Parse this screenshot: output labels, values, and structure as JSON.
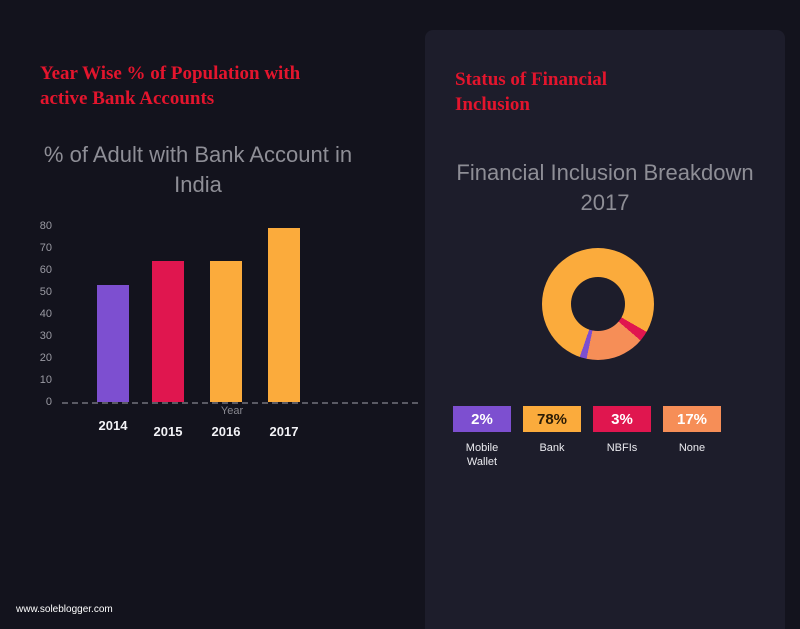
{
  "page": {
    "footer": "www.soleblogger.com",
    "background_color": "#13131d",
    "panel_color": "#1d1d2b",
    "accent_red": "#e3152d"
  },
  "left": {
    "heading": "Year Wise % of Population with active Bank Accounts",
    "chart_title": "% of Adult with Bank Account in India"
  },
  "right": {
    "heading": "Status of Financial Inclusion",
    "chart_title": "Financial Inclusion Breakdown 2017"
  },
  "chart_data": [
    {
      "type": "bar",
      "title": "% of Adult with Bank Account in India",
      "categories": [
        "2014",
        "2015",
        "2016",
        "2017"
      ],
      "values": [
        53,
        64,
        64,
        79
      ],
      "colors": [
        "#7d4fd0",
        "#e0164f",
        "#fbab3c",
        "#fbab3c"
      ],
      "xlabel": "Year",
      "ylabel": "",
      "ylim": [
        0,
        80
      ],
      "yticks": [
        0,
        10,
        20,
        30,
        40,
        50,
        60,
        70,
        80
      ],
      "grid": false,
      "legend_position": "none"
    },
    {
      "type": "pie",
      "donut": true,
      "title": "Financial Inclusion Breakdown 2017",
      "start_angle_deg": 199,
      "slices": [
        {
          "label": "Bank",
          "value": 78,
          "color": "#fbab3c"
        },
        {
          "label": "NBFIs",
          "value": 3,
          "color": "#e0164f"
        },
        {
          "label": "None",
          "value": 17,
          "color": "#f68e57"
        },
        {
          "label": "Mobile Wallet",
          "value": 2,
          "color": "#7d4fd0"
        }
      ],
      "legend_position": "bottom"
    }
  ],
  "legend": [
    {
      "pct": "2%",
      "label": "Mobile Wallet",
      "color": "#7d4fd0",
      "text_color": "#ffffff"
    },
    {
      "pct": "78%",
      "label": "Bank",
      "color": "#fbab3c",
      "text_color": "#2b1c06"
    },
    {
      "pct": "3%",
      "label": "NBFIs",
      "color": "#e0164f",
      "text_color": "#ffffff"
    },
    {
      "pct": "17%",
      "label": "None",
      "color": "#f68e57",
      "text_color": "#ffffff"
    }
  ]
}
